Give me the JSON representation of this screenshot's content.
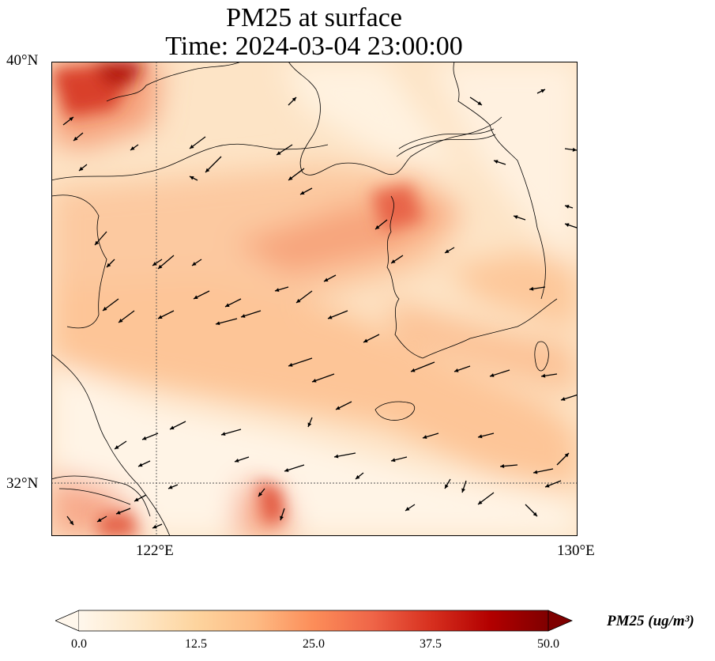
{
  "title": {
    "line1": "PM25 at surface",
    "line2": "Time: 2024-03-04 23:00:00"
  },
  "axes": {
    "lat_labels": [
      "40°N",
      "32°N"
    ],
    "lon_labels": [
      "122°E",
      "130°E"
    ],
    "lon_range": [
      120,
      130
    ],
    "lat_range": [
      31,
      40
    ]
  },
  "colorbar": {
    "ticks": [
      "0.0",
      "12.5",
      "25.0",
      "37.5",
      "50.0"
    ],
    "unit_label": "PM25 (ug/m³)",
    "range": [
      0,
      50
    ],
    "extend": "both",
    "colormap": "OrRd"
  },
  "colors": {
    "low": "#fff7ec",
    "mid": "#fdbb84",
    "high": "#d7301f",
    "max": "#7f0000"
  }
}
